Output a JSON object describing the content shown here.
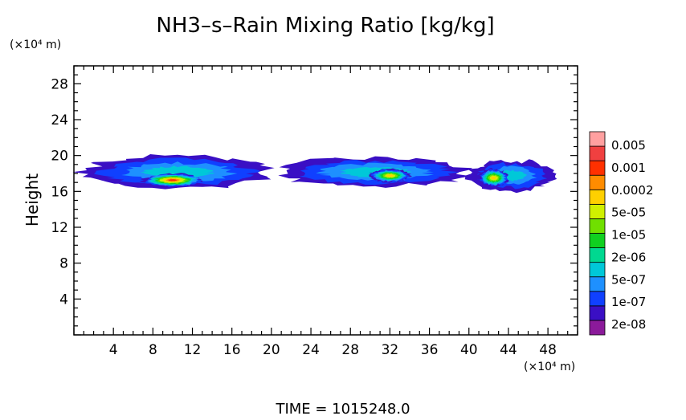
{
  "chart_data": {
    "type": "heatmap",
    "title": "NH3–s–Rain Mixing Ratio [kg/kg]",
    "ylabel": "Height",
    "y_unit": "(×10⁴ m)",
    "x_unit": "(×10⁴ m)",
    "footer": "TIME  =  1015248.0",
    "xlim": [
      0,
      51
    ],
    "ylim": [
      0,
      30
    ],
    "x_ticks": [
      4,
      8,
      12,
      16,
      20,
      24,
      28,
      32,
      36,
      40,
      44,
      48
    ],
    "y_ticks": [
      4,
      8,
      12,
      16,
      20,
      24,
      28
    ],
    "grid": false,
    "colorbar": {
      "labels": [
        "0.005",
        "0.001",
        "0.0002",
        "5e-05",
        "1e-05",
        "2e-06",
        "5e-07",
        "1e-07",
        "2e-08"
      ],
      "colors": [
        "#8b1a9a",
        "#3a0fc4",
        "#1040ff",
        "#1e90ff",
        "#00c8d8",
        "#00d890",
        "#10d020",
        "#70e000",
        "#d0f000",
        "#ffd000",
        "#ff8c00",
        "#ff3000",
        "#f04040",
        "#ffa0a0"
      ]
    },
    "regions": [
      {
        "name": "cloud-west",
        "level": 1,
        "x": [
          1,
          20
        ],
        "y": [
          16.3,
          20
        ]
      },
      {
        "name": "core-west",
        "level": 11,
        "x": [
          7,
          13
        ],
        "y": [
          16.5,
          18
        ]
      },
      {
        "name": "cloud-middle",
        "level": 1,
        "x": [
          21,
          40
        ],
        "y": [
          16.5,
          19.8
        ]
      },
      {
        "name": "core-middle",
        "level": 9,
        "x": [
          30,
          34
        ],
        "y": [
          17,
          18.5
        ]
      },
      {
        "name": "cloud-east",
        "level": 1,
        "x": [
          40,
          48.5
        ],
        "y": [
          16,
          19.5
        ]
      },
      {
        "name": "core-east",
        "level": 9,
        "x": [
          41,
          44
        ],
        "y": [
          16.5,
          18.5
        ]
      }
    ]
  }
}
